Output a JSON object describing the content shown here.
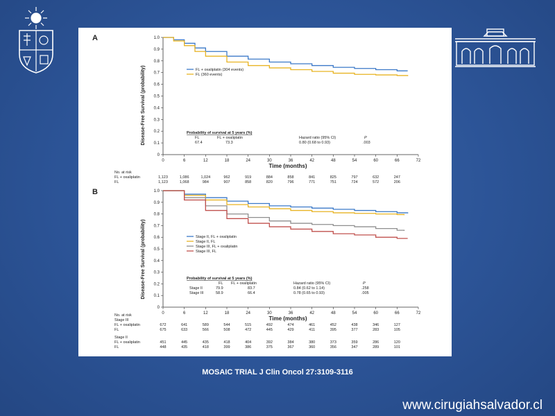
{
  "slide": {
    "caption": "MOSAIC TRIAL J Clin Oncol 27:3109-3116",
    "website": "www.cirugiahsalvador.cl"
  },
  "colors": {
    "background": "#2c5497",
    "fl_oxaliplatin": "#3a78c8",
    "fl": "#e8b322",
    "stage_ii_fl_oxaliplatin": "#3a78c8",
    "stage_ii_fl": "#e8b322",
    "stage_iii_fl_oxaliplatin": "#8f8f8f",
    "stage_iii_fl": "#c0504d"
  },
  "chart_data": [
    {
      "panel": "A",
      "type": "line",
      "ylabel": "Disease-Free Survival (probability)",
      "xlabel": "Time (months)",
      "xlim": [
        0,
        72
      ],
      "ylim": [
        0,
        1.0
      ],
      "xticks": [
        "0",
        "6",
        "12",
        "18",
        "24",
        "30",
        "36",
        "42",
        "48",
        "54",
        "60",
        "66",
        "72"
      ],
      "yticks": [
        "0",
        "0.1",
        "0.2",
        "0.3",
        "0.4",
        "0.5",
        "0.6",
        "0.7",
        "0.8",
        "0.9",
        "1.0"
      ],
      "series": [
        {
          "name": "FL + oxaliplatin (304 events)",
          "color": "#3a78c8",
          "x": [
            0,
            3,
            6,
            9,
            12,
            18,
            24,
            30,
            36,
            42,
            48,
            54,
            60,
            66,
            69
          ],
          "y": [
            1.0,
            0.98,
            0.95,
            0.91,
            0.88,
            0.84,
            0.815,
            0.79,
            0.775,
            0.76,
            0.745,
            0.735,
            0.725,
            0.715,
            0.715
          ]
        },
        {
          "name": "FL (360 events)",
          "color": "#e8b322",
          "x": [
            0,
            3,
            6,
            9,
            12,
            18,
            24,
            30,
            36,
            42,
            48,
            54,
            60,
            66,
            69
          ],
          "y": [
            1.0,
            0.97,
            0.93,
            0.88,
            0.84,
            0.79,
            0.76,
            0.74,
            0.725,
            0.71,
            0.695,
            0.685,
            0.68,
            0.675,
            0.67
          ]
        }
      ],
      "legend_placement": "center-left",
      "annotation": {
        "title": "Probability of survival at 5 years (%)",
        "headers": [
          "FL",
          "FL + oxaliplatin",
          "Hazard ratio (95% CI)",
          "P"
        ],
        "rows": [
          [
            "67.4",
            "73.3",
            "0.80 (0.68 to 0.93)",
            ".003"
          ]
        ]
      },
      "risk_table": {
        "title": "No. at risk",
        "rows": [
          {
            "label": "FL + oxaliplatin",
            "values": [
              "1,123",
              "1,086",
              "1,024",
              "962",
              "919",
              "884",
              "858",
              "841",
              "825",
              "797",
              "632",
              "247"
            ]
          },
          {
            "label": "FL",
            "values": [
              "1,123",
              "1,068",
              "984",
              "907",
              "858",
              "820",
              "796",
              "771",
              "751",
              "724",
              "572",
              "206"
            ]
          }
        ]
      }
    },
    {
      "panel": "B",
      "type": "line",
      "ylabel": "Disease-Free Survival (probability)",
      "xlabel": "Time (months)",
      "xlim": [
        0,
        72
      ],
      "ylim": [
        0,
        1.0
      ],
      "xticks": [
        "0",
        "6",
        "12",
        "18",
        "24",
        "30",
        "36",
        "42",
        "48",
        "54",
        "60",
        "66",
        "72"
      ],
      "yticks": [
        "0",
        "0.1",
        "0.2",
        "0.3",
        "0.4",
        "0.5",
        "0.6",
        "0.7",
        "0.8",
        "0.9",
        "1.0"
      ],
      "series": [
        {
          "name": "Stage II, FL + oxaliplatin",
          "color": "#3a78c8",
          "x": [
            0,
            6,
            12,
            18,
            24,
            30,
            36,
            42,
            48,
            54,
            60,
            66,
            69
          ],
          "y": [
            1.0,
            0.97,
            0.94,
            0.91,
            0.89,
            0.87,
            0.86,
            0.85,
            0.84,
            0.83,
            0.82,
            0.81,
            0.805
          ]
        },
        {
          "name": "Stage II, FL",
          "color": "#e8b322",
          "x": [
            0,
            6,
            12,
            18,
            24,
            30,
            36,
            42,
            48,
            54,
            60,
            66,
            68
          ],
          "y": [
            1.0,
            0.96,
            0.92,
            0.88,
            0.86,
            0.845,
            0.83,
            0.82,
            0.81,
            0.805,
            0.8,
            0.795,
            0.79
          ]
        },
        {
          "name": "Stage III, FL + oxaliplatin",
          "color": "#8f8f8f",
          "x": [
            0,
            6,
            12,
            18,
            24,
            30,
            36,
            42,
            48,
            54,
            60,
            66,
            68
          ],
          "y": [
            1.0,
            0.94,
            0.87,
            0.8,
            0.77,
            0.74,
            0.72,
            0.71,
            0.7,
            0.69,
            0.675,
            0.66,
            0.655
          ]
        },
        {
          "name": "Stage III, FL",
          "color": "#c0504d",
          "x": [
            0,
            6,
            12,
            18,
            24,
            30,
            36,
            42,
            48,
            54,
            60,
            66,
            69
          ],
          "y": [
            1.0,
            0.92,
            0.83,
            0.76,
            0.72,
            0.69,
            0.67,
            0.65,
            0.63,
            0.62,
            0.6,
            0.59,
            0.59
          ]
        }
      ],
      "legend_placement": "center-left",
      "annotation": {
        "title": "Probability of survival at 5 years (%)",
        "headers": [
          "FL",
          "FL + oxaliplatin",
          "Hazard ratio (95% CI)",
          "P"
        ],
        "rows": [
          [
            "Stage II",
            "79.9",
            "83.7",
            "0.84 (0.62 to 1.14)",
            ".258"
          ],
          [
            "Stage III",
            "58.9",
            "66.4",
            "0.78 (0.65 to 0.93)",
            ".005"
          ]
        ]
      },
      "risk_table": {
        "title": "No. at risk",
        "groups": [
          {
            "label": "Stage III",
            "rows": [
              {
                "label": "FL + oxaliplatin",
                "values": [
                  "672",
                  "641",
                  "589",
                  "544",
                  "515",
                  "492",
                  "474",
                  "461",
                  "452",
                  "438",
                  "346",
                  "127"
                ]
              },
              {
                "label": "FL",
                "values": [
                  "675",
                  "633",
                  "566",
                  "508",
                  "472",
                  "445",
                  "429",
                  "411",
                  "395",
                  "377",
                  "283",
                  "105"
                ]
              }
            ]
          },
          {
            "label": "Stage II",
            "rows": [
              {
                "label": "FL + oxaliplatin",
                "values": [
                  "451",
                  "445",
                  "435",
                  "418",
                  "404",
                  "392",
                  "384",
                  "380",
                  "373",
                  "359",
                  "286",
                  "120"
                ]
              },
              {
                "label": "FL",
                "values": [
                  "448",
                  "435",
                  "418",
                  "399",
                  "386",
                  "375",
                  "367",
                  "360",
                  "356",
                  "347",
                  "289",
                  "101"
                ]
              }
            ]
          }
        ]
      }
    }
  ]
}
